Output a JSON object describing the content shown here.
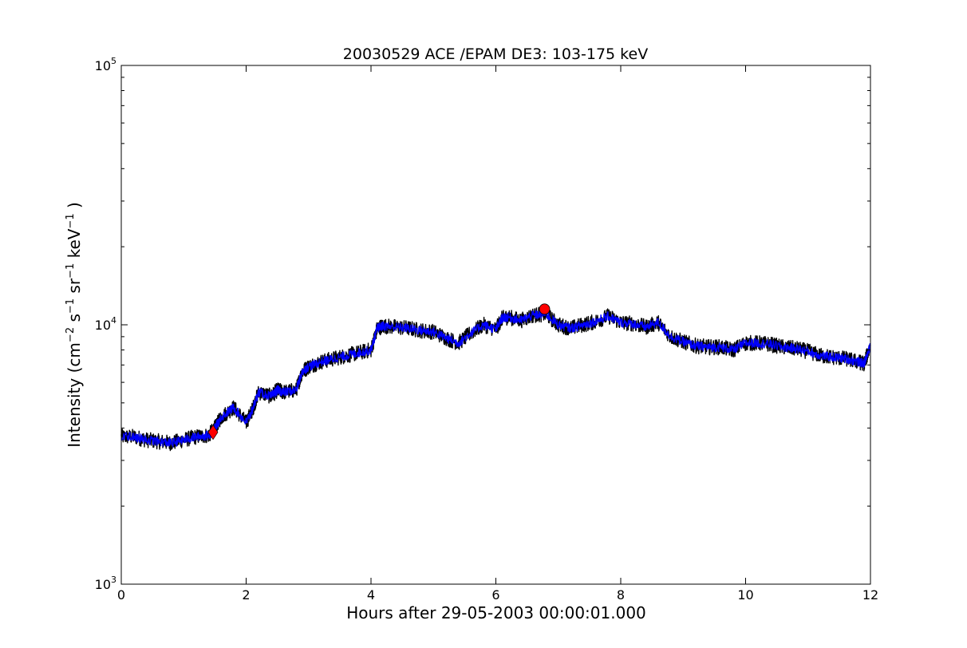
{
  "chart_data": {
    "type": "line",
    "title": "20030529 ACE /EPAM DE3: 103-175 keV",
    "xlabel": "Hours after 29-05-2003 00:00:01.000",
    "ylabel": {
      "prefix": "Intensity (cm",
      "exp1": "−2",
      "s": " s",
      "exp2": "−1",
      "sr": " sr",
      "exp3": "−1",
      "kev": " keV",
      "exp4": "−1",
      "suffix": " )"
    },
    "xlim": [
      0,
      12
    ],
    "ylim": [
      1000,
      100000
    ],
    "yscale": "log",
    "grid": false,
    "x_ticks": [
      0,
      2,
      4,
      6,
      8,
      10,
      12
    ],
    "x_tick_labels": [
      "0",
      "2",
      "4",
      "6",
      "8",
      "10",
      "12"
    ],
    "y_ticks": [
      {
        "value": 1000,
        "base": "10",
        "exp": "3"
      },
      {
        "value": 10000,
        "base": "10",
        "exp": "4"
      },
      {
        "value": 100000,
        "base": "10",
        "exp": "5"
      }
    ],
    "series": [
      {
        "color": "#000000",
        "x": [
          0,
          0.2,
          0.4,
          0.6,
          0.8,
          1.0,
          1.2,
          1.4,
          1.5,
          1.6,
          1.8,
          2.0,
          2.1,
          2.2,
          2.4,
          2.5,
          2.6,
          2.8,
          2.9,
          3.0,
          3.2,
          3.4,
          3.6,
          3.8,
          4.0,
          4.1,
          4.2,
          4.4,
          4.6,
          4.8,
          5.0,
          5.2,
          5.4,
          5.6,
          5.8,
          6.0,
          6.1,
          6.2,
          6.4,
          6.6,
          6.8,
          7.0,
          7.2,
          7.4,
          7.6,
          7.8,
          8.0,
          8.2,
          8.4,
          8.6,
          8.8,
          9.0,
          9.2,
          9.4,
          9.6,
          9.8,
          10.0,
          10.2,
          10.4,
          10.6,
          10.8,
          11.0,
          11.2,
          11.4,
          11.6,
          11.8,
          11.9,
          12.0
        ],
        "y": [
          3700,
          3700,
          3600,
          3550,
          3500,
          3600,
          3700,
          3750,
          4000,
          4400,
          4800,
          4200,
          4700,
          5500,
          5300,
          5600,
          5500,
          5600,
          6600,
          6900,
          7200,
          7400,
          7600,
          7800,
          8000,
          9700,
          9900,
          9800,
          9700,
          9500,
          9400,
          8900,
          8500,
          9300,
          10000,
          9600,
          10600,
          10700,
          10400,
          10900,
          11000,
          10000,
          9700,
          10000,
          10300,
          10800,
          10200,
          10100,
          9800,
          10200,
          9000,
          8600,
          8300,
          8200,
          8200,
          8000,
          8500,
          8500,
          8400,
          8200,
          8100,
          7900,
          7600,
          7500,
          7400,
          7200,
          7100,
          8300
        ]
      },
      {
        "color": "#0000ff",
        "x": [
          0,
          0.2,
          0.4,
          0.6,
          0.8,
          1.0,
          1.2,
          1.4,
          1.5,
          1.6,
          1.8,
          2.0,
          2.1,
          2.2,
          2.4,
          2.5,
          2.6,
          2.8,
          2.9,
          3.0,
          3.2,
          3.4,
          3.6,
          3.8,
          4.0,
          4.1,
          4.2,
          4.4,
          4.6,
          4.8,
          5.0,
          5.2,
          5.4,
          5.6,
          5.8,
          6.0,
          6.1,
          6.2,
          6.4,
          6.6,
          6.8,
          7.0,
          7.2,
          7.4,
          7.6,
          7.8,
          8.0,
          8.2,
          8.4,
          8.6,
          8.8,
          9.0,
          9.2,
          9.4,
          9.6,
          9.8,
          10.0,
          10.2,
          10.4,
          10.6,
          10.8,
          11.0,
          11.2,
          11.4,
          11.6,
          11.8,
          11.9,
          12.0
        ],
        "y": [
          3700,
          3700,
          3600,
          3550,
          3500,
          3600,
          3700,
          3750,
          4000,
          4400,
          4800,
          4200,
          4700,
          5500,
          5300,
          5600,
          5500,
          5600,
          6600,
          6900,
          7200,
          7400,
          7600,
          7800,
          8000,
          9700,
          9900,
          9800,
          9700,
          9500,
          9400,
          8900,
          8500,
          9300,
          10000,
          9600,
          10600,
          10700,
          10400,
          10900,
          11000,
          10000,
          9700,
          10000,
          10300,
          10800,
          10200,
          10100,
          9800,
          10200,
          9000,
          8600,
          8300,
          8200,
          8200,
          8000,
          8500,
          8500,
          8400,
          8200,
          8100,
          7900,
          7600,
          7500,
          7400,
          7200,
          7100,
          8300
        ]
      }
    ],
    "markers": [
      {
        "shape": "diamond",
        "color": "#ff0000",
        "x": 1.47,
        "y": 3850
      },
      {
        "shape": "circle",
        "color": "#ff0000",
        "x": 6.78,
        "y": 11500
      }
    ]
  }
}
